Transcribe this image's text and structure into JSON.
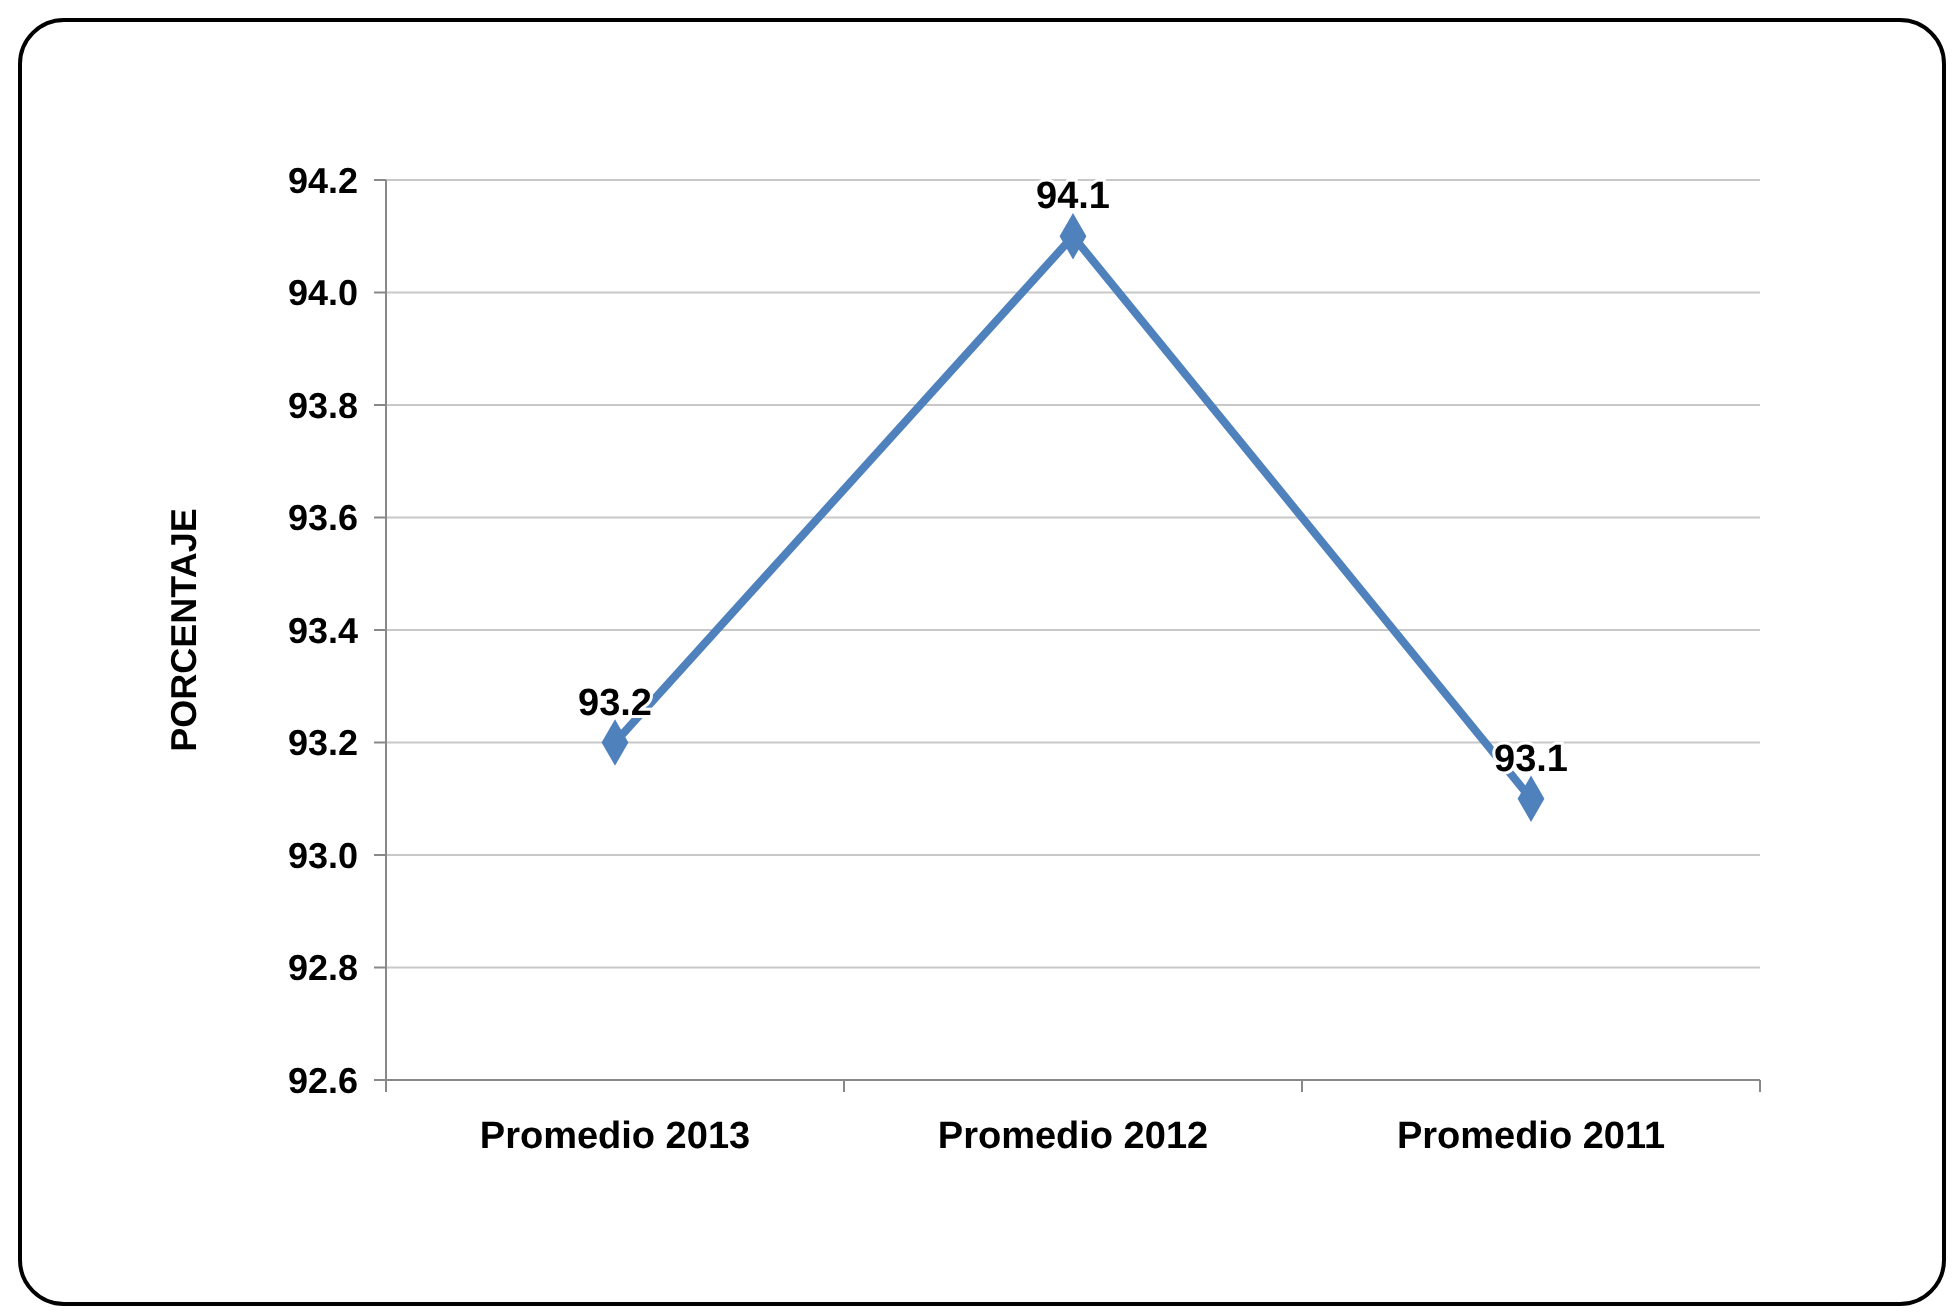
{
  "chart_data": {
    "type": "line",
    "ylabel": "PORCENTAJE",
    "categories": [
      "Promedio 2013",
      "Promedio 2012",
      "Promedio 2011"
    ],
    "series": [
      {
        "color": "#4f81bd",
        "values": [
          93.2,
          94.1,
          93.1
        ]
      }
    ],
    "ylim": [
      92.6,
      94.2
    ],
    "yticks": [
      92.6,
      92.8,
      {
        "value": 93,
        "label": "93.0"
      },
      93.2,
      93.4,
      93.6,
      93.8,
      {
        "value": 94,
        "label": "94.0"
      },
      94.2
    ],
    "grid": "y",
    "marker": "diamond",
    "line_style": "solid",
    "data_labels": true
  }
}
